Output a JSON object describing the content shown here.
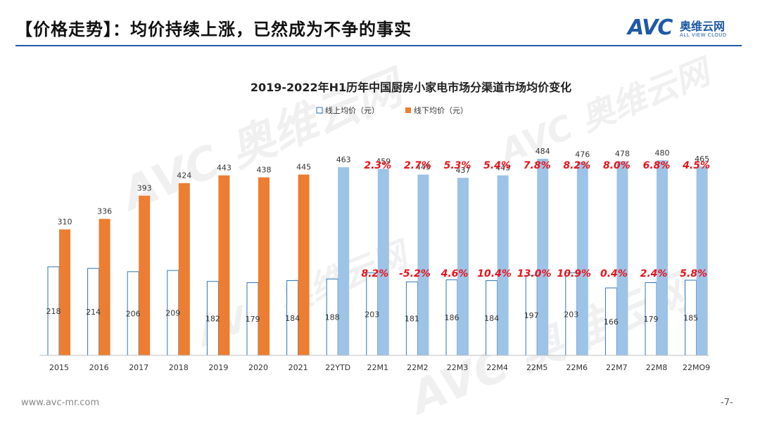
{
  "header": {
    "title": "【价格走势】：均价持续上涨，已然成为不争的事实"
  },
  "logo": {
    "mark": "AVC",
    "cn": "奥维云网",
    "en": "ALL VIEW CLOUD"
  },
  "watermark": {
    "text": "AVC 奥维云网",
    "sub": "ALL VIEW CLOUD"
  },
  "footer": {
    "url": "www.avc-mr.com",
    "page": "-7-"
  },
  "colors": {
    "online_fill": "#ffffff",
    "online_stroke": "#2e75b6",
    "offline_historical": "#ed7d31",
    "offline_recent": "#9dc3e6",
    "pct": "#e8131b",
    "accent": "#1f5aa6"
  },
  "chart_data": {
    "type": "bar",
    "title": "2019-2022年H1历年中国厨房小家电市场分渠道市场均价变化",
    "categories": [
      "2015",
      "2016",
      "2017",
      "2018",
      "2019",
      "2020",
      "2021",
      "22YTD",
      "22M1",
      "22M2",
      "22M3",
      "22M4",
      "22M5",
      "22M6",
      "22M7",
      "22M8",
      "22MO9"
    ],
    "series": [
      {
        "name": "线上均价（元）",
        "values": [
          218,
          214,
          206,
          209,
          182,
          179,
          184,
          188,
          203,
          181,
          186,
          184,
          197,
          203,
          166,
          179,
          185
        ]
      },
      {
        "name": "线下均价（元）",
        "values": [
          310,
          336,
          393,
          424,
          443,
          438,
          445,
          463,
          459,
          445,
          437,
          443,
          484,
          476,
          478,
          480,
          465
        ]
      }
    ],
    "online_growth_labels": [
      "8.2%",
      "-5.2%",
      "4.6%",
      "10.4%",
      "13.0%",
      "10.9%",
      "0.4%",
      "2.4%",
      "5.8%"
    ],
    "offline_growth_labels": [
      "2.3%",
      "2.7%",
      "5.3%",
      "5.4%",
      "7.8%",
      "8.2%",
      "8.0%",
      "6.8%",
      "4.5%"
    ],
    "growth_label_start_index": 8,
    "ylim": [
      0,
      560
    ],
    "grid": false,
    "legend_position": "top-center"
  }
}
